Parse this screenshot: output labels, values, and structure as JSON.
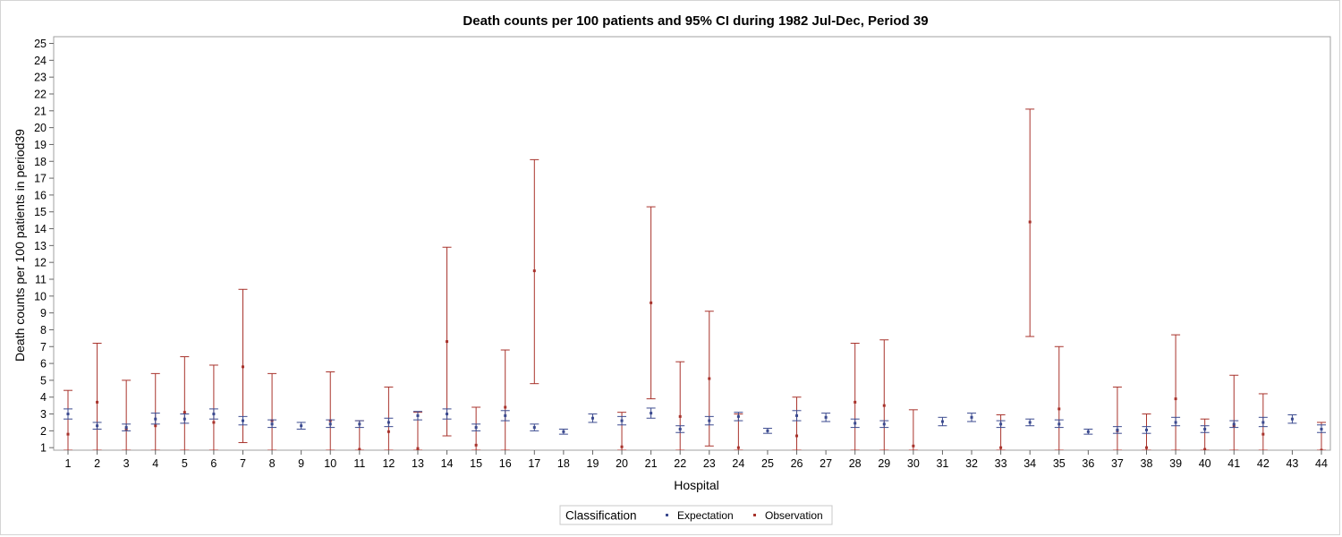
{
  "chart_data": {
    "type": "scatter",
    "title": "Death counts per 100 patients and 95% CI during 1982 Jul-Dec, Period 39",
    "xlabel": "Hospital",
    "ylabel": "Death counts per 100 patients in period39",
    "ylim": [
      0.85,
      25.4
    ],
    "yticks": [
      1,
      2,
      3,
      4,
      5,
      6,
      7,
      8,
      9,
      10,
      11,
      12,
      13,
      14,
      15,
      16,
      17,
      18,
      19,
      20,
      21,
      22,
      23,
      24,
      25
    ],
    "legend": {
      "title": "Classification",
      "position": "bottom-center"
    },
    "colors": {
      "expectation": "#3b4a8f",
      "observation": "#a8332c"
    },
    "categories": [
      "1",
      "2",
      "3",
      "4",
      "5",
      "6",
      "7",
      "8",
      "9",
      "10",
      "11",
      "12",
      "13",
      "14",
      "15",
      "16",
      "17",
      "18",
      "19",
      "20",
      "21",
      "22",
      "23",
      "24",
      "25",
      "26",
      "27",
      "28",
      "29",
      "30",
      "31",
      "32",
      "33",
      "34",
      "35",
      "36",
      "37",
      "38",
      "39",
      "40",
      "41",
      "42",
      "43",
      "44"
    ],
    "series": [
      {
        "name": "Expectation",
        "values": [
          3.0,
          2.3,
          2.2,
          2.7,
          2.7,
          3.0,
          2.6,
          2.4,
          2.3,
          2.4,
          2.4,
          2.5,
          2.9,
          3.0,
          2.2,
          2.9,
          2.2,
          1.95,
          2.75,
          2.6,
          3.05,
          2.1,
          2.6,
          2.85,
          2.0,
          2.9,
          2.8,
          2.45,
          2.4,
          null,
          2.55,
          2.8,
          2.4,
          2.5,
          2.4,
          1.95,
          2.05,
          2.05,
          2.5,
          2.1,
          2.4,
          2.5,
          2.7,
          2.1
        ],
        "lower": [
          2.7,
          2.1,
          2.0,
          2.4,
          2.45,
          2.7,
          2.35,
          2.2,
          2.1,
          2.2,
          2.2,
          2.25,
          2.65,
          2.7,
          2.0,
          2.6,
          2.0,
          1.8,
          2.5,
          2.35,
          2.75,
          1.9,
          2.35,
          2.6,
          1.85,
          2.6,
          2.55,
          2.2,
          2.2,
          null,
          2.3,
          2.55,
          2.2,
          2.3,
          2.2,
          1.8,
          1.85,
          1.85,
          2.3,
          1.9,
          2.2,
          2.25,
          2.45,
          1.9
        ],
        "upper": [
          3.3,
          2.5,
          2.4,
          3.05,
          3.0,
          3.3,
          2.85,
          2.65,
          2.5,
          2.65,
          2.6,
          2.75,
          3.15,
          3.3,
          2.4,
          3.2,
          2.4,
          2.1,
          3.0,
          2.85,
          3.35,
          2.3,
          2.85,
          3.1,
          2.15,
          3.2,
          3.05,
          2.7,
          2.6,
          null,
          2.8,
          3.05,
          2.6,
          2.7,
          2.65,
          2.1,
          2.25,
          2.25,
          2.8,
          2.3,
          2.6,
          2.8,
          2.95,
          2.35
        ]
      },
      {
        "name": "Observation",
        "values": [
          1.8,
          3.7,
          2.1,
          2.3,
          3.1,
          2.5,
          5.8,
          2.6,
          null,
          2.6,
          0.9,
          1.95,
          0.95,
          7.3,
          1.15,
          3.4,
          11.5,
          null,
          null,
          1.05,
          9.6,
          2.85,
          5.1,
          1.0,
          null,
          1.7,
          null,
          3.7,
          3.5,
          1.1,
          null,
          null,
          1.0,
          14.4,
          3.3,
          null,
          2.0,
          1.0,
          3.9,
          0.9,
          2.3,
          1.8,
          null,
          0.85
        ],
        "lower": [
          0.85,
          0.85,
          0.85,
          0.85,
          0.85,
          0.85,
          1.3,
          0.85,
          null,
          0.85,
          0.85,
          0.85,
          0.85,
          1.7,
          0.85,
          0.85,
          4.8,
          null,
          null,
          0.85,
          3.9,
          0.85,
          1.1,
          0.85,
          null,
          0.85,
          null,
          0.85,
          0.85,
          0.85,
          null,
          null,
          0.85,
          7.6,
          0.85,
          null,
          0.85,
          0.85,
          0.85,
          0.85,
          0.85,
          0.85,
          null,
          0.85
        ],
        "upper": [
          4.4,
          7.2,
          5.0,
          5.4,
          6.4,
          5.9,
          10.4,
          5.4,
          null,
          5.5,
          2.6,
          4.6,
          3.1,
          12.9,
          3.4,
          6.8,
          18.1,
          null,
          null,
          3.1,
          15.3,
          6.1,
          9.1,
          3.0,
          null,
          4.0,
          null,
          7.2,
          7.4,
          3.25,
          null,
          null,
          2.95,
          21.1,
          7.0,
          null,
          4.6,
          3.0,
          7.7,
          2.7,
          5.3,
          4.2,
          null,
          2.5
        ]
      }
    ]
  }
}
